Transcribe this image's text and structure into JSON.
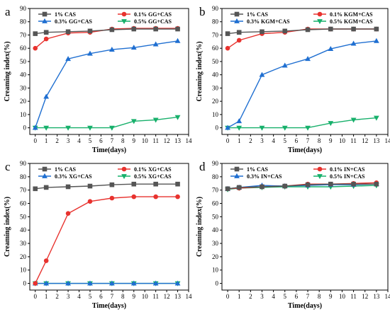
{
  "chart_data": [
    {
      "type": "line",
      "panel_label": "a",
      "xlabel": "Time(days)",
      "ylabel": "Creaming index(%)",
      "xlim": [
        -0.5,
        14
      ],
      "ylim": [
        -5,
        90
      ],
      "xticks": [
        0,
        1,
        2,
        3,
        4,
        5,
        6,
        7,
        8,
        9,
        10,
        11,
        12,
        13,
        14
      ],
      "yticks": [
        0,
        10,
        20,
        30,
        40,
        50,
        60,
        70,
        80,
        90
      ],
      "legend_position": "top",
      "x": [
        0,
        1,
        3,
        5,
        7,
        9,
        11,
        13
      ],
      "series": [
        {
          "name": "1% CAS",
          "color": "#555555",
          "marker": "square",
          "values": [
            71,
            72,
            72.5,
            73,
            74,
            74.5,
            74.5,
            74.5
          ]
        },
        {
          "name": "0.1% GG+CAS",
          "color": "#e8322e",
          "marker": "circle",
          "values": [
            60,
            67,
            71.5,
            72,
            74.5,
            75,
            75,
            75
          ]
        },
        {
          "name": "0.3% GG+CAS",
          "color": "#1f6fd1",
          "marker": "triangle-up",
          "values": [
            0,
            23.5,
            52,
            56,
            59,
            60.5,
            63,
            65.5
          ]
        },
        {
          "name": "0.5% GG+CAS",
          "color": "#17b06b",
          "marker": "triangle-down",
          "values": [
            0,
            0,
            0,
            0,
            0,
            5,
            6,
            8
          ]
        }
      ]
    },
    {
      "type": "line",
      "panel_label": "b",
      "xlabel": "Time(days)",
      "ylabel": "Creaming index(%)",
      "xlim": [
        -0.5,
        14
      ],
      "ylim": [
        -5,
        90
      ],
      "xticks": [
        0,
        1,
        2,
        3,
        4,
        5,
        6,
        7,
        8,
        9,
        10,
        11,
        12,
        13,
        14
      ],
      "yticks": [
        0,
        10,
        20,
        30,
        40,
        50,
        60,
        70,
        80,
        90
      ],
      "legend_position": "top",
      "x": [
        0,
        1,
        3,
        5,
        7,
        9,
        11,
        13
      ],
      "series": [
        {
          "name": "1% CAS",
          "color": "#555555",
          "marker": "square",
          "values": [
            71,
            72,
            72.5,
            73,
            74,
            74.5,
            74.5,
            74.5
          ]
        },
        {
          "name": "0.1% KGM+CAS",
          "color": "#e8322e",
          "marker": "circle",
          "values": [
            60,
            66,
            71,
            72,
            74.5,
            74.5,
            74.5,
            74.5
          ]
        },
        {
          "name": "0.3% KGM+CAS",
          "color": "#1f6fd1",
          "marker": "triangle-up",
          "values": [
            0,
            5,
            40,
            47,
            52,
            59.5,
            63.5,
            65.5
          ]
        },
        {
          "name": "0.5% KGM+CAS",
          "color": "#17b06b",
          "marker": "triangle-down",
          "values": [
            0,
            0,
            0,
            0,
            0,
            3.5,
            6,
            7.5
          ]
        }
      ]
    },
    {
      "type": "line",
      "panel_label": "c",
      "xlabel": "Time(days)",
      "ylabel": "Creaming index(%)",
      "xlim": [
        -0.5,
        14
      ],
      "ylim": [
        -5,
        90
      ],
      "xticks": [
        0,
        1,
        2,
        3,
        4,
        5,
        6,
        7,
        8,
        9,
        10,
        11,
        12,
        13,
        14
      ],
      "yticks": [
        0,
        10,
        20,
        30,
        40,
        50,
        60,
        70,
        80,
        90
      ],
      "legend_position": "top",
      "x": [
        0,
        1,
        3,
        5,
        7,
        9,
        11,
        13
      ],
      "series": [
        {
          "name": "1% CAS",
          "color": "#555555",
          "marker": "square",
          "values": [
            71,
            72,
            72.5,
            73,
            74,
            74.5,
            74.5,
            74.5
          ]
        },
        {
          "name": "0.1% XG+CAS",
          "color": "#e8322e",
          "marker": "circle",
          "values": [
            0,
            17,
            52.5,
            61.5,
            64,
            65,
            65,
            65
          ]
        },
        {
          "name": "0.3% XG+CAS",
          "color": "#1f6fd1",
          "marker": "triangle-up",
          "values": [
            0,
            0,
            0,
            0,
            0,
            0,
            0,
            0
          ]
        },
        {
          "name": "0.5% XG+CAS",
          "color": "#17b06b",
          "marker": "triangle-down",
          "values": [
            0,
            0,
            0,
            0,
            0,
            0,
            0,
            0
          ]
        }
      ]
    },
    {
      "type": "line",
      "panel_label": "d",
      "xlabel": "Time(days)",
      "ylabel": "Creaming index(%)",
      "xlim": [
        -0.5,
        14
      ],
      "ylim": [
        -5,
        90
      ],
      "xticks": [
        0,
        1,
        2,
        3,
        4,
        5,
        6,
        7,
        8,
        9,
        10,
        11,
        12,
        13,
        14
      ],
      "yticks": [
        0,
        10,
        20,
        30,
        40,
        50,
        60,
        70,
        80,
        90
      ],
      "legend_position": "top",
      "x": [
        0,
        1,
        3,
        5,
        7,
        9,
        11,
        13
      ],
      "series": [
        {
          "name": "1% CAS",
          "color": "#555555",
          "marker": "square",
          "values": [
            71,
            72,
            72.5,
            73,
            74,
            74.5,
            74.5,
            74.5
          ]
        },
        {
          "name": "0.1% IN+CAS",
          "color": "#e8322e",
          "marker": "circle",
          "values": [
            71,
            71.5,
            72.5,
            73,
            74.5,
            74.5,
            75,
            75.5
          ]
        },
        {
          "name": "0.3% IN+CAS",
          "color": "#1f6fd1",
          "marker": "triangle-up",
          "values": [
            71,
            72,
            73.5,
            73,
            73.5,
            74,
            74,
            74.5
          ]
        },
        {
          "name": "0.5% IN+CAS",
          "color": "#17b06b",
          "marker": "triangle-down",
          "values": [
            70.5,
            71.5,
            72,
            72.5,
            72.5,
            72.5,
            73,
            73.5
          ]
        }
      ]
    }
  ]
}
